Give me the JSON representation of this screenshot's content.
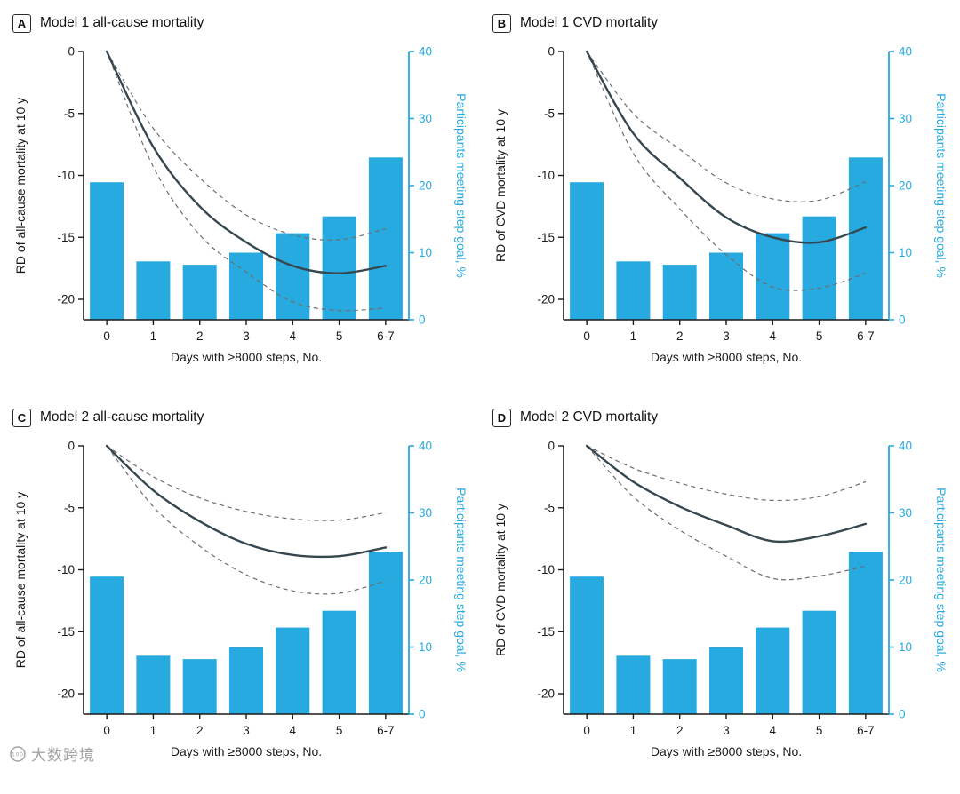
{
  "colors": {
    "bar": "#27AADF",
    "right_axis": "#27AADF",
    "line": "#37474F",
    "ci": "#6E6E6E",
    "axis": "#1A1A1A"
  },
  "watermark": {
    "text": "大数跨境",
    "badge": "100"
  },
  "chart_data": [
    {
      "panel_label": "A",
      "title": "Model 1 all-cause mortality",
      "type": "bar+line",
      "categories": [
        "0",
        "1",
        "2",
        "3",
        "4",
        "5",
        "6-7"
      ],
      "xlabel": "Days with ≥8000 steps, No.",
      "left_ylabel": "RD of all-cause mortality at 10 y",
      "right_ylabel": "Participants meeting step goal, %",
      "left_ticks": [
        0,
        -5,
        -10,
        -15,
        -20
      ],
      "right_ticks": [
        0,
        10,
        20,
        30,
        40
      ],
      "left_range": [
        0,
        -20
      ],
      "right_range": [
        0,
        40
      ],
      "bars_pct": [
        20.5,
        8.7,
        8.2,
        10.0,
        12.9,
        15.4,
        24.2
      ],
      "rd_line": [
        0,
        -7.7,
        -12.5,
        -15.4,
        -17.3,
        -17.9,
        -17.3
      ],
      "ci_upper": [
        0,
        -6.2,
        -10.2,
        -13.2,
        -14.8,
        -15.2,
        -14.3
      ],
      "ci_lower": [
        0,
        -9.3,
        -14.8,
        -17.8,
        -20.2,
        -20.9,
        -20.7
      ]
    },
    {
      "panel_label": "B",
      "title": "Model 1 CVD mortality",
      "type": "bar+line",
      "categories": [
        "0",
        "1",
        "2",
        "3",
        "4",
        "5",
        "6-7"
      ],
      "xlabel": "Days with ≥8000 steps, No.",
      "left_ylabel": "RD of CVD mortality at 10 y",
      "right_ylabel": "Participants meeting step goal, %",
      "left_ticks": [
        0,
        -5,
        -10,
        -15,
        -20
      ],
      "right_ticks": [
        0,
        10,
        20,
        30,
        40
      ],
      "left_range": [
        0,
        -20
      ],
      "right_range": [
        0,
        40
      ],
      "bars_pct": [
        20.5,
        8.7,
        8.2,
        10.0,
        12.9,
        15.4,
        24.2
      ],
      "rd_line": [
        0,
        -6.6,
        -10.2,
        -13.4,
        -15.0,
        -15.4,
        -14.2
      ],
      "ci_upper": [
        0,
        -5.0,
        -7.9,
        -10.6,
        -11.9,
        -12.0,
        -10.5
      ],
      "ci_lower": [
        0,
        -8.2,
        -12.7,
        -16.4,
        -19.0,
        -19.1,
        -17.9
      ]
    },
    {
      "panel_label": "C",
      "title": "Model 2 all-cause mortality",
      "type": "bar+line",
      "categories": [
        "0",
        "1",
        "2",
        "3",
        "4",
        "5",
        "6-7"
      ],
      "xlabel": "Days with ≥8000 steps, No.",
      "left_ylabel": "RD of all-cause mortality at 10 y",
      "right_ylabel": "Participants meeting step goal, %",
      "left_ticks": [
        0,
        -5,
        -10,
        -15,
        -20
      ],
      "right_ticks": [
        0,
        10,
        20,
        30,
        40
      ],
      "left_range": [
        0,
        -20
      ],
      "right_range": [
        0,
        40
      ],
      "bars_pct": [
        20.5,
        8.7,
        8.2,
        10.0,
        12.9,
        15.4,
        24.2
      ],
      "rd_line": [
        0,
        -3.6,
        -6.1,
        -7.9,
        -8.8,
        -8.9,
        -8.2
      ],
      "ci_upper": [
        0,
        -2.5,
        -4.2,
        -5.3,
        -5.9,
        -6.0,
        -5.4
      ],
      "ci_lower": [
        0,
        -4.9,
        -8.1,
        -10.4,
        -11.7,
        -11.9,
        -10.9
      ]
    },
    {
      "panel_label": "D",
      "title": "Model 2 CVD mortality",
      "type": "bar+line",
      "categories": [
        "0",
        "1",
        "2",
        "3",
        "4",
        "5",
        "6-7"
      ],
      "xlabel": "Days with ≥8000 steps, No.",
      "left_ylabel": "RD of CVD mortality at 10 y",
      "right_ylabel": "Participants meeting step goal, %",
      "left_ticks": [
        0,
        -5,
        -10,
        -15,
        -20
      ],
      "right_ticks": [
        0,
        10,
        20,
        30,
        40
      ],
      "left_range": [
        0,
        -20
      ],
      "right_range": [
        0,
        40
      ],
      "bars_pct": [
        20.5,
        8.7,
        8.2,
        10.0,
        12.9,
        15.4,
        24.2
      ],
      "rd_line": [
        0,
        -2.9,
        -4.9,
        -6.4,
        -7.7,
        -7.3,
        -6.3
      ],
      "ci_upper": [
        0,
        -1.8,
        -3.0,
        -3.9,
        -4.4,
        -4.1,
        -2.9
      ],
      "ci_lower": [
        0,
        -4.1,
        -6.8,
        -8.9,
        -10.7,
        -10.5,
        -9.7
      ]
    }
  ]
}
